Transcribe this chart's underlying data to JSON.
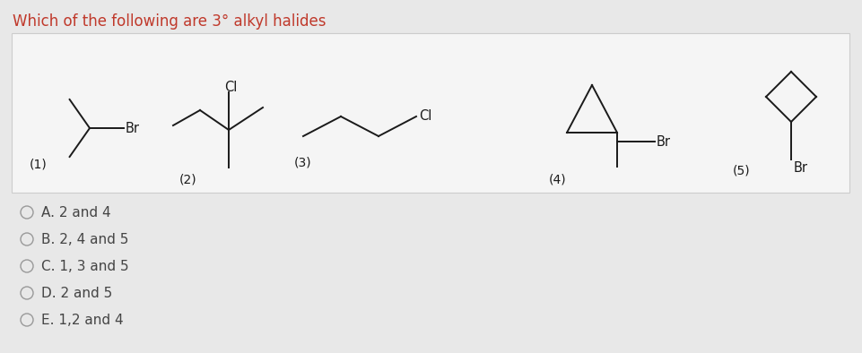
{
  "title": "Which of the following are 3° alkyl halides",
  "title_color": "#c0392b",
  "title_fontsize": 12,
  "bg_color": "#e8e8e8",
  "panel_bg": "#f5f5f5",
  "options": [
    "A. 2 and 4",
    "B. 2, 4 and 5",
    "C. 1, 3 and 5",
    "D. 2 and 5",
    "E. 1,2 and 4"
  ],
  "options_color": "#444444",
  "options_fontsize": 11
}
